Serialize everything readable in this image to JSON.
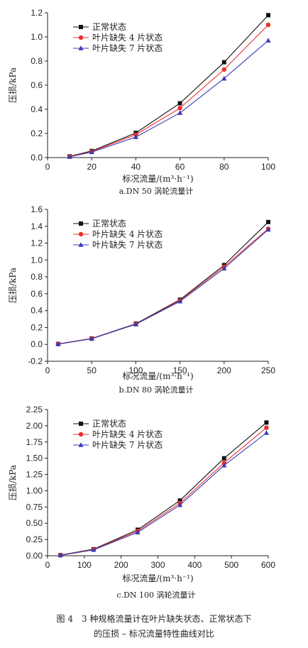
{
  "chart_data": [
    {
      "type": "line",
      "x": [
        10,
        20,
        40,
        60,
        80,
        100
      ],
      "series": [
        {
          "name": "正常状态",
          "values": [
            0.01,
            0.055,
            0.205,
            0.45,
            0.79,
            1.18
          ],
          "color": "#111111",
          "marker": "square"
        },
        {
          "name": "叶片缺失 4 片状态",
          "values": [
            0.008,
            0.05,
            0.19,
            0.41,
            0.73,
            1.1
          ],
          "color": "#e8302c",
          "marker": "circle"
        },
        {
          "name": "叶片缺失 7 片状态",
          "values": [
            0.006,
            0.045,
            0.17,
            0.37,
            0.655,
            0.97
          ],
          "color": "#3a3ab8",
          "marker": "triangle"
        }
      ],
      "xlim": [
        0,
        100
      ],
      "ylim": [
        0,
        1.2
      ],
      "xticks": [
        "0",
        "20",
        "40",
        "60",
        "80",
        "100"
      ],
      "yticks": [
        "0.0",
        "0.2",
        "0.4",
        "0.6",
        "0.8",
        "1.0",
        "1.2"
      ],
      "xlabel": "标况流量/(m³·h⁻¹)",
      "ylabel": "压损/kPa",
      "legend": "top-left",
      "caption": "a.DN 50 涡轮流量计"
    },
    {
      "type": "line",
      "x": [
        12,
        50,
        100,
        150,
        200,
        250
      ],
      "series": [
        {
          "name": "正常状态",
          "values": [
            0.005,
            0.07,
            0.245,
            0.53,
            0.94,
            1.45
          ],
          "color": "#111111",
          "marker": "square"
        },
        {
          "name": "叶片缺失 4 片状态",
          "values": [
            0.004,
            0.068,
            0.24,
            0.52,
            0.92,
            1.37
          ],
          "color": "#e8302c",
          "marker": "circle"
        },
        {
          "name": "叶片缺失 7 片状态",
          "values": [
            0.003,
            0.066,
            0.238,
            0.51,
            0.9,
            1.36
          ],
          "color": "#3a3ab8",
          "marker": "triangle"
        }
      ],
      "xlim": [
        0,
        250
      ],
      "ylim": [
        -0.2,
        1.6
      ],
      "xticks": [
        "0",
        "50",
        "100",
        "150",
        "200",
        "250"
      ],
      "yticks": [
        "-0.2",
        "0.0",
        "0.2",
        "0.4",
        "0.6",
        "0.8",
        "1.0",
        "1.2",
        "1.4",
        "1.6"
      ],
      "xlabel": "标况流量/(m³·h⁻¹)",
      "ylabel": "压损/kPa",
      "legend": "top-left",
      "caption": "b.DN 80 涡轮流量计"
    },
    {
      "type": "line",
      "x": [
        35,
        125,
        245,
        360,
        480,
        595
      ],
      "series": [
        {
          "name": "正常状态",
          "values": [
            0.01,
            0.1,
            0.4,
            0.85,
            1.5,
            2.05
          ],
          "color": "#111111",
          "marker": "square"
        },
        {
          "name": "叶片缺失 4 片状态",
          "values": [
            0.008,
            0.095,
            0.38,
            0.81,
            1.43,
            1.97
          ],
          "color": "#e8302c",
          "marker": "circle"
        },
        {
          "name": "叶片缺失 7 片状态",
          "values": [
            0.006,
            0.09,
            0.36,
            0.78,
            1.39,
            1.89
          ],
          "color": "#3a3ab8",
          "marker": "triangle"
        }
      ],
      "xlim": [
        0,
        600
      ],
      "ylim": [
        0,
        2.25
      ],
      "xticks": [
        "0",
        "100",
        "200",
        "300",
        "400",
        "500",
        "600"
      ],
      "yticks": [
        "0.00",
        "0.25",
        "0.50",
        "0.75",
        "1.00",
        "1.25",
        "1.50",
        "1.75",
        "2.00",
        "2.25"
      ],
      "xlabel": "标况流量/(m³·h⁻¹)",
      "ylabel": "压损/kPa",
      "legend": "top-left",
      "caption": "c.DN 100 涡轮流量计"
    }
  ],
  "figure_caption": {
    "line1": "图 4　3 种规格流量计在叶片缺失状态、正常状态下",
    "line2": "的压损 – 标况流量特性曲线对比"
  }
}
